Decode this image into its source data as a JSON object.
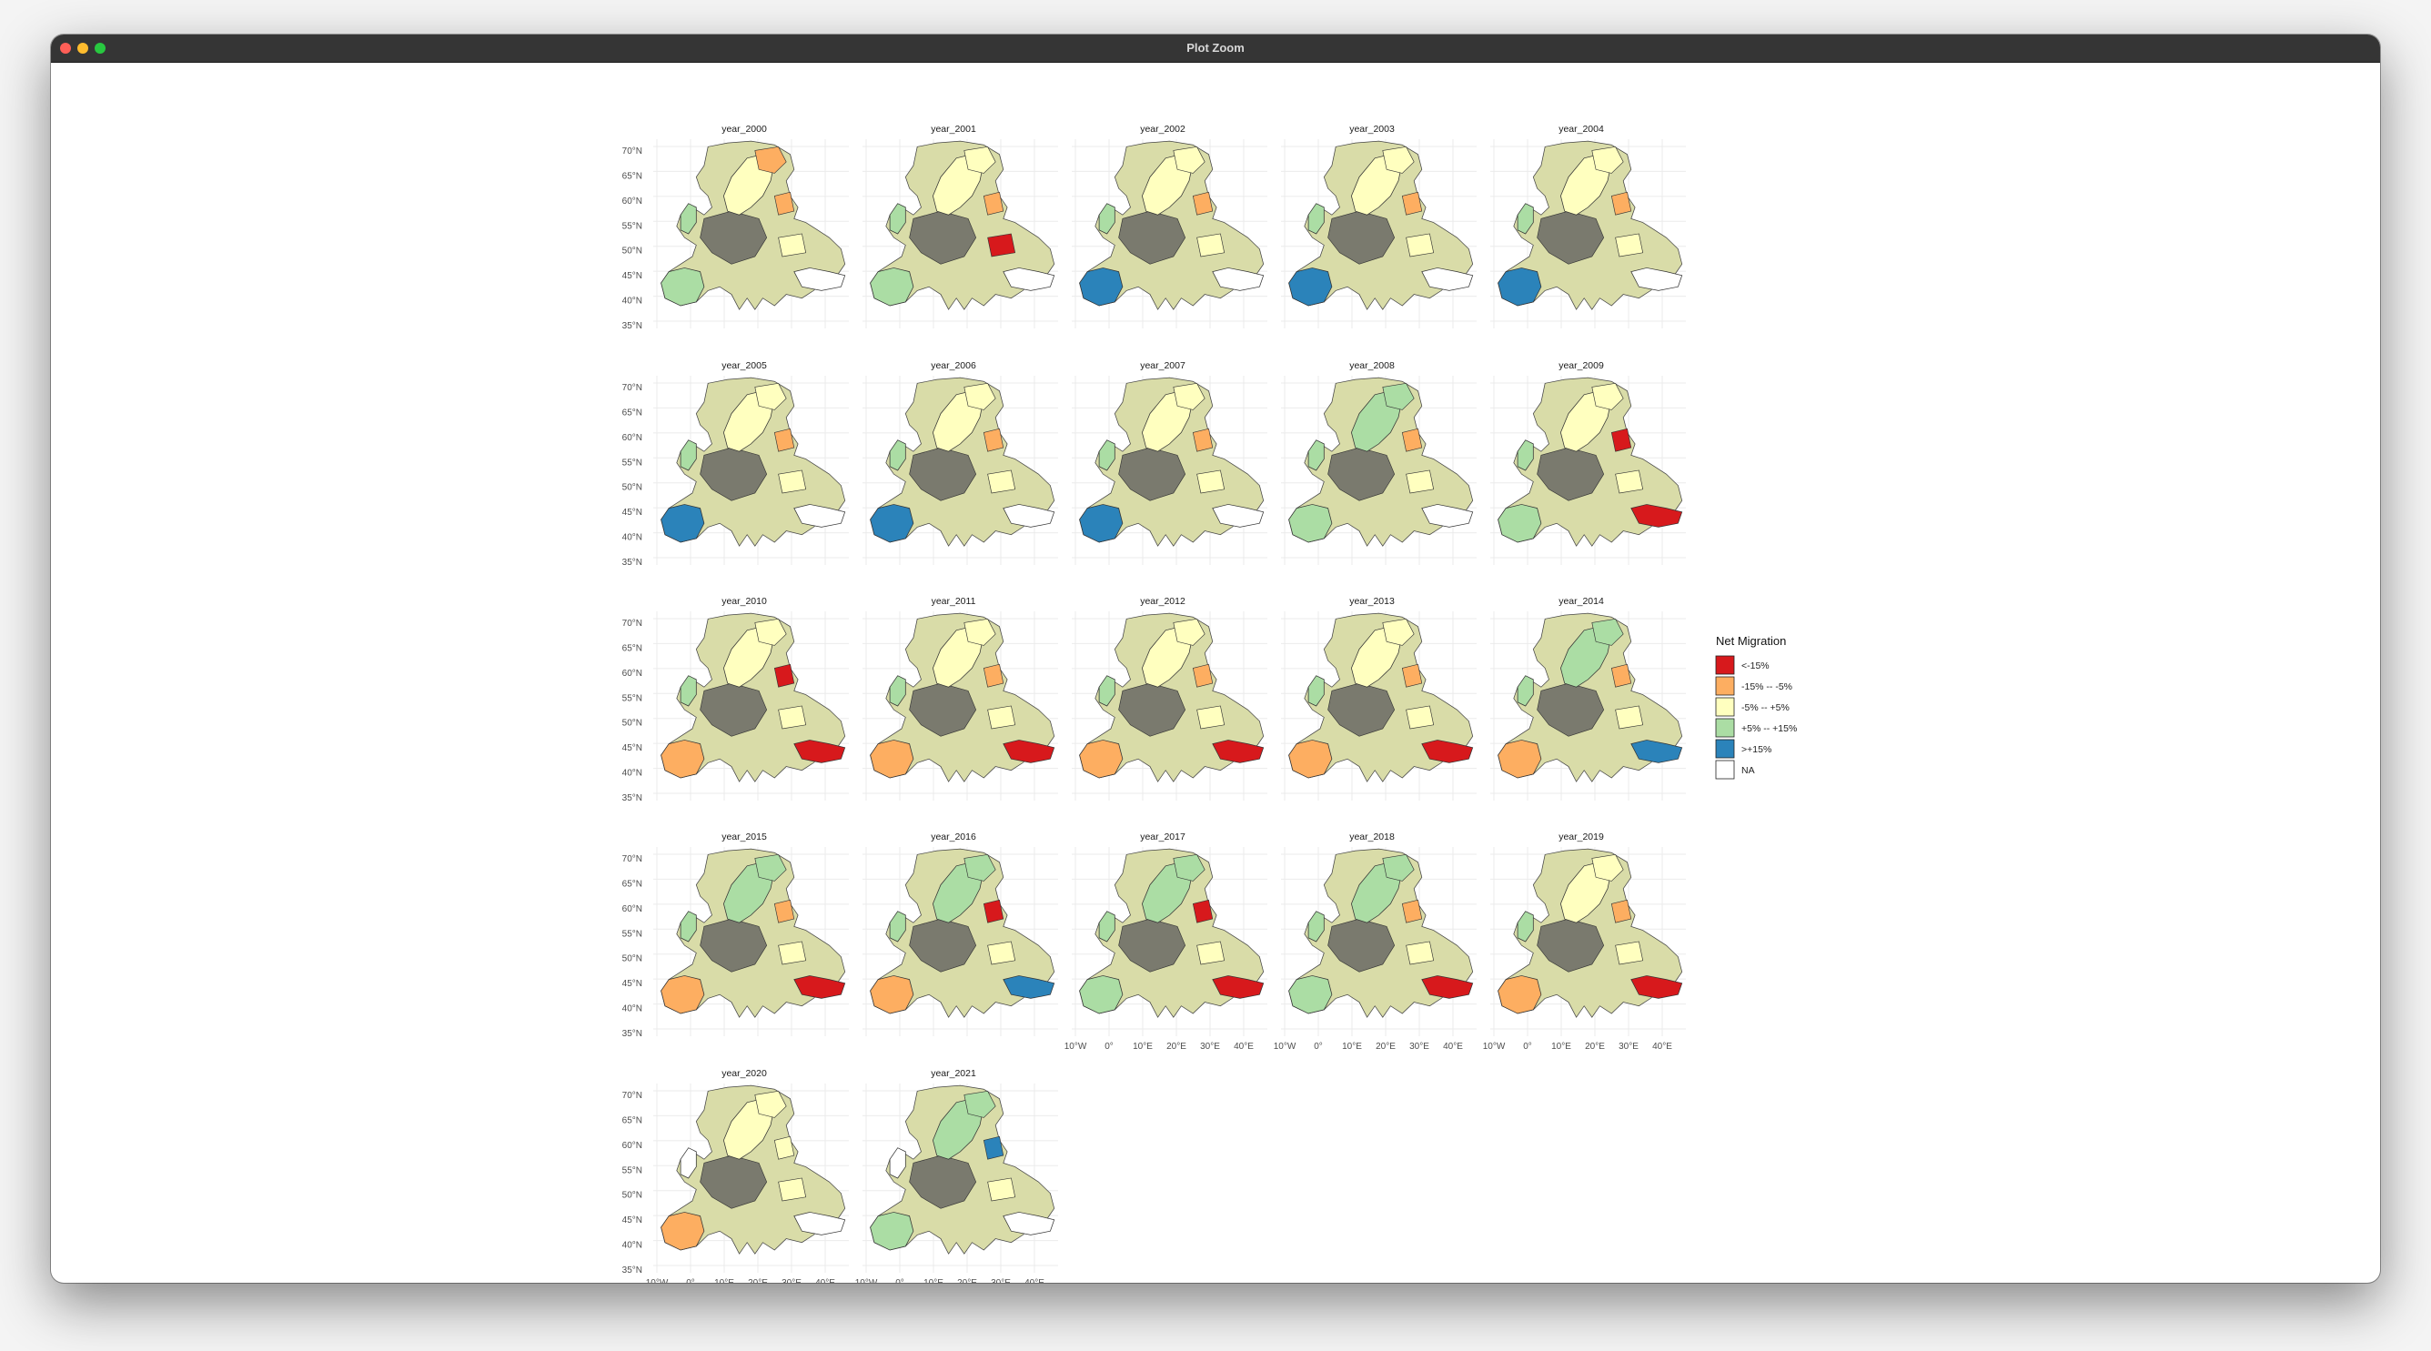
{
  "window": {
    "title": "Plot Zoom"
  },
  "chart_data": {
    "type": "map",
    "panels": [
      {
        "label": "year_2000"
      },
      {
        "label": "year_2001"
      },
      {
        "label": "year_2002"
      },
      {
        "label": "year_2003"
      },
      {
        "label": "year_2004"
      },
      {
        "label": "year_2005"
      },
      {
        "label": "year_2006"
      },
      {
        "label": "year_2007"
      },
      {
        "label": "year_2008"
      },
      {
        "label": "year_2009"
      },
      {
        "label": "year_2010"
      },
      {
        "label": "year_2011"
      },
      {
        "label": "year_2012"
      },
      {
        "label": "year_2013"
      },
      {
        "label": "year_2014"
      },
      {
        "label": "year_2015"
      },
      {
        "label": "year_2016"
      },
      {
        "label": "year_2017"
      },
      {
        "label": "year_2018"
      },
      {
        "label": "year_2019"
      },
      {
        "label": "year_2020"
      },
      {
        "label": "year_2021"
      }
    ],
    "y_ticks": [
      "70°N",
      "65°N",
      "60°N",
      "55°N",
      "50°N",
      "45°N",
      "40°N",
      "35°N"
    ],
    "x_ticks": [
      "10°W",
      "0°",
      "10°E",
      "20°E",
      "30°E",
      "40°E"
    ],
    "ylim": [
      35,
      70
    ],
    "xlim": [
      -10,
      40
    ],
    "legend": {
      "title": "Net Migration",
      "position": "right",
      "items": [
        {
          "label": "<-15%",
          "color": "#d7191c"
        },
        {
          "label": "-15% -- -5%",
          "color": "#fdae61"
        },
        {
          "label": "-5% -- +5%",
          "color": "#ffffbf"
        },
        {
          "label": "+5% -- +15%",
          "color": "#abdda4"
        },
        {
          "label": ">+15%",
          "color": "#2b83ba"
        },
        {
          "label": "NA",
          "color": "#ffffff"
        }
      ]
    },
    "grid": true
  }
}
